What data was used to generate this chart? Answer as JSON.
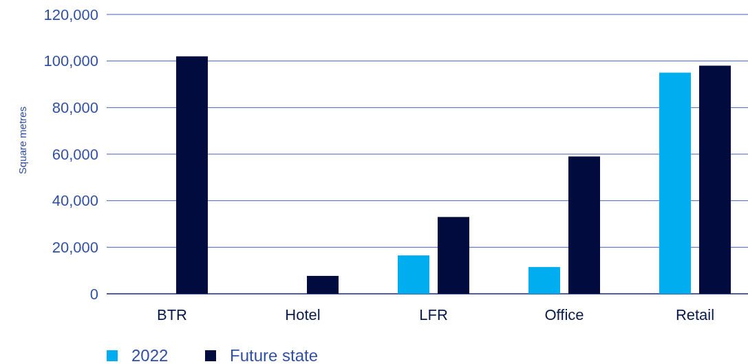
{
  "chart_data": {
    "type": "bar",
    "ylabel": "Square metres",
    "categories": [
      "BTR",
      "Hotel",
      "LFR",
      "Office",
      "Retail"
    ],
    "series": [
      {
        "name": "2022",
        "color": "#00aeef",
        "values": [
          0,
          0,
          16500,
          11500,
          95000
        ]
      },
      {
        "name": "Future state",
        "color": "#020b3d",
        "values": [
          102000,
          7700,
          33000,
          59000,
          98000
        ]
      }
    ],
    "ylim": [
      0,
      120000
    ],
    "yticks": [
      {
        "value": 0,
        "label": "0"
      },
      {
        "value": 20000,
        "label": "20,000"
      },
      {
        "value": 40000,
        "label": "40,000"
      },
      {
        "value": 60000,
        "label": "60,000"
      },
      {
        "value": 80000,
        "label": "80,000"
      },
      {
        "value": 100000,
        "label": "100,000"
      },
      {
        "value": 120000,
        "label": "120,000"
      }
    ],
    "grid": "y",
    "legend": "bottom"
  }
}
